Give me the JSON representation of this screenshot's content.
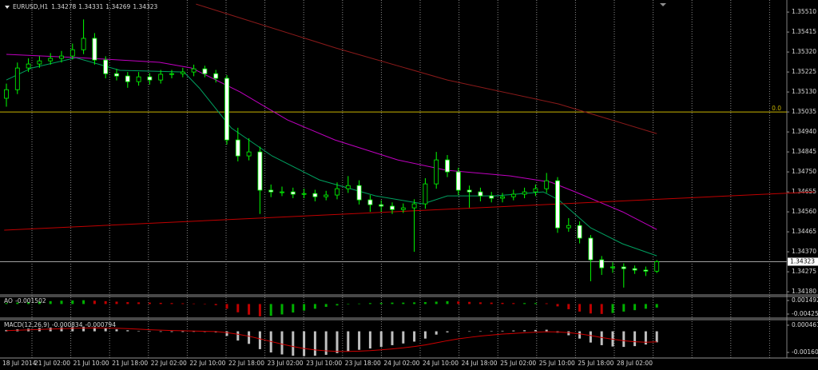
{
  "chart_data": {
    "type": "candlestick",
    "title": "EURUSD,H1",
    "up_color": "#00ff00",
    "down_color": "#ffffff",
    "open": [
      1.351,
      1.35141,
      1.35244,
      1.35263,
      1.35278,
      1.3529,
      1.35301,
      1.35331,
      1.35385,
      1.35282,
      1.35217,
      1.35206,
      1.35179,
      1.35202,
      1.35187,
      1.35214,
      1.35217,
      1.35225,
      1.3524,
      1.35217,
      1.35195,
      1.34902,
      1.34826,
      1.34845,
      1.34663,
      1.34655,
      1.34655,
      1.34644,
      1.34647,
      1.34632,
      1.3464,
      1.3467,
      1.34685,
      1.34617,
      1.34594,
      1.34587,
      1.34571,
      1.34579,
      1.34598,
      1.34693,
      1.34807,
      1.3475,
      1.34663,
      1.34655,
      1.34636,
      1.34625,
      1.34632,
      1.34644,
      1.34655,
      1.3467,
      1.34708,
      1.34484,
      1.34495,
      1.34435,
      1.34332,
      1.34294,
      1.34298,
      1.3429,
      1.34283,
      1.34278
    ],
    "high": [
      1.3517,
      1.3527,
      1.3529,
      1.353,
      1.35315,
      1.35325,
      1.3536,
      1.35475,
      1.3541,
      1.353,
      1.3524,
      1.35225,
      1.35225,
      1.3522,
      1.35235,
      1.35235,
      1.35245,
      1.3526,
      1.35255,
      1.35235,
      1.3521,
      1.3496,
      1.3491,
      1.3487,
      1.3469,
      1.3468,
      1.34675,
      1.3467,
      1.34665,
      1.3466,
      1.347,
      1.3473,
      1.3471,
      1.3464,
      1.34615,
      1.34605,
      1.346,
      1.3462,
      1.3472,
      1.34845,
      1.3483,
      1.3477,
      1.34685,
      1.34675,
      1.34655,
      1.3465,
      1.34665,
      1.34675,
      1.3469,
      1.34745,
      1.34725,
      1.3453,
      1.34515,
      1.3445,
      1.3435,
      1.3432,
      1.34315,
      1.34305,
      1.343,
      1.34331
    ],
    "low": [
      1.3506,
      1.3512,
      1.35225,
      1.35245,
      1.3526,
      1.3527,
      1.35285,
      1.3531,
      1.3526,
      1.35195,
      1.35185,
      1.3515,
      1.3516,
      1.35165,
      1.3517,
      1.35195,
      1.352,
      1.35205,
      1.352,
      1.35175,
      1.3488,
      1.348,
      1.34805,
      1.3455,
      1.3463,
      1.34635,
      1.34625,
      1.34625,
      1.3461,
      1.34615,
      1.3462,
      1.3465,
      1.34595,
      1.3456,
      1.3456,
      1.3455,
      1.34555,
      1.3437,
      1.34575,
      1.3467,
      1.34725,
      1.3464,
      1.3458,
      1.3461,
      1.34605,
      1.34605,
      1.34615,
      1.34625,
      1.34635,
      1.3465,
      1.3446,
      1.34465,
      1.3441,
      1.3423,
      1.3426,
      1.3427,
      1.342,
      1.34265,
      1.34255,
      1.34269
    ],
    "close": [
      1.35141,
      1.35244,
      1.35263,
      1.35278,
      1.3529,
      1.35301,
      1.35331,
      1.35385,
      1.35282,
      1.35217,
      1.35206,
      1.35179,
      1.35202,
      1.35187,
      1.35214,
      1.35217,
      1.35225,
      1.3524,
      1.35217,
      1.35195,
      1.34902,
      1.34826,
      1.34845,
      1.34663,
      1.34655,
      1.34655,
      1.34644,
      1.34647,
      1.34632,
      1.3464,
      1.3467,
      1.34685,
      1.34617,
      1.34594,
      1.34587,
      1.34571,
      1.34579,
      1.34598,
      1.34693,
      1.34807,
      1.3475,
      1.34663,
      1.34655,
      1.34636,
      1.34625,
      1.34632,
      1.34644,
      1.34655,
      1.3467,
      1.34708,
      1.34484,
      1.34495,
      1.34435,
      1.34332,
      1.34294,
      1.34298,
      1.3429,
      1.34283,
      1.34278,
      1.34323
    ],
    "categories": [
      "18 Jul 2014",
      "21 Jul 02:00",
      "21 Jul 10:00",
      "21 Jul 18:00",
      "22 Jul 02:00",
      "22 Jul 10:00",
      "22 Jul 18:00",
      "23 Jul 02:00",
      "23 Jul 10:00",
      "23 Jul 18:00",
      "24 Jul 02:00",
      "24 Jul 10:00",
      "24 Jul 18:00",
      "25 Jul 02:00",
      "25 Jul 10:00",
      "25 Jul 18:00",
      "28 Jul 02:00"
    ],
    "ylim": [
      1.34169,
      1.35556
    ],
    "yticks": [
      {
        "value": 1.3551,
        "label": "1.35510"
      },
      1.35415,
      {
        "value": 1.3532,
        "label": "1.35320"
      },
      1.35225,
      {
        "value": 1.3513,
        "label": "1.35130"
      },
      1.35035,
      {
        "value": 1.3494,
        "label": "1.34940"
      },
      1.34845,
      {
        "value": 1.3475,
        "label": "1.34750"
      },
      1.34655,
      {
        "value": 1.3456,
        "label": "1.34560"
      },
      1.34465,
      {
        "value": 1.3437,
        "label": "1.34370"
      },
      1.34275,
      {
        "value": 1.3418,
        "label": "1.34180"
      }
    ],
    "grid": true,
    "overlays": [
      {
        "color": "#00a060",
        "x": [
          0,
          2.3,
          6.3,
          10.3,
          16.1,
          17.5,
          20.4,
          24.1,
          28.4,
          33.5,
          37.8,
          40,
          44.3,
          48.7,
          50.1,
          53,
          55.9,
          59
        ],
        "values": [
          1.35187,
          1.35244,
          1.35293,
          1.35233,
          1.35225,
          1.35149,
          1.34959,
          1.34826,
          1.34712,
          1.34636,
          1.34598,
          1.34636,
          1.34636,
          1.34655,
          1.34617,
          1.34484,
          1.34408,
          1.34351
        ]
      },
      {
        "color": "#c000c0",
        "x": [
          0,
          6.7,
          13.9,
          16.8,
          21.2,
          25.5,
          29.8,
          35.5,
          39.9,
          45.7,
          49.4,
          51.6,
          55.9,
          59
        ],
        "values": [
          1.35309,
          1.35293,
          1.35271,
          1.35244,
          1.3513,
          1.34997,
          1.34902,
          1.34807,
          1.34758,
          1.34731,
          1.34701,
          1.34655,
          1.3456,
          1.34476
        ]
      },
      {
        "color": "#8b1a1a",
        "x": [
          17.2,
          29.9,
          40,
          50.1,
          59
        ],
        "values": [
          1.35548,
          1.35339,
          1.35187,
          1.35073,
          1.34932
        ]
      },
      {
        "color": "#c00000",
        "x": [
          -0.2,
          73.3
        ],
        "values": [
          1.34473,
          1.34655
        ]
      }
    ],
    "levels": [
      {
        "value": 1.35035,
        "label": "0.0",
        "color": "#c8b400"
      }
    ],
    "subcharts": [
      {
        "type": "ao",
        "title": "AO",
        "up_color": "#00b000",
        "down_color": "#c00000",
        "values": [
          0.0004,
          0.0006,
          0.0008,
          0.001,
          0.0012,
          0.0014,
          0.0015,
          0.0016,
          0.0014,
          0.0012,
          0.001,
          0.0008,
          0.0007,
          0.0006,
          0.0005,
          0.0004,
          0.0003,
          0.0002,
          0,
          -0.0005,
          -0.002,
          -0.0035,
          -0.0045,
          -0.0052,
          -0.005,
          -0.0044,
          -0.0036,
          -0.0028,
          -0.002,
          -0.0012,
          -0.0006,
          -0.0002,
          0.0002,
          0.0004,
          0.0005,
          0.0006,
          0.0006,
          0.0007,
          0.0008,
          0.001,
          0.0012,
          0.0011,
          0.0009,
          0.0007,
          0.0006,
          0.0005,
          0.0004,
          0.0004,
          0.0004,
          0.0003,
          -0.001,
          -0.0022,
          -0.0032,
          -0.004,
          -0.0042,
          -0.0038,
          -0.0032,
          -0.0026,
          -0.002,
          -0.001502
        ],
        "ylim": [
          -0.00594,
          0.00285
        ],
        "yticks": [
          0.001492,
          -0.00425
        ]
      },
      {
        "type": "macd",
        "title": "MACD(12,26,9)",
        "color": "#c0c0c0",
        "values": [
          0.0001,
          0.00015,
          0.0002,
          0.00025,
          0.00028,
          0.0003,
          0.00032,
          0.00035,
          0.0003,
          0.00022,
          0.00015,
          8e-05,
          2e-05,
          -2e-05,
          -4e-05,
          -5e-05,
          -5e-05,
          -4e-05,
          -5e-05,
          -8e-05,
          -0.00035,
          -0.0007,
          -0.00095,
          -0.00135,
          -0.0016,
          -0.00175,
          -0.00185,
          -0.00188,
          -0.00185,
          -0.00178,
          -0.00165,
          -0.0015,
          -0.0014,
          -0.0013,
          -0.00118,
          -0.00105,
          -0.00092,
          -0.00078,
          -0.00055,
          -0.00025,
          -8e-05,
          -2e-05,
          0,
          2e-05,
          3e-05,
          4e-05,
          6e-05,
          8e-05,
          0.0001,
          0.00012,
          -0.0001,
          -0.0003,
          -0.00055,
          -0.00085,
          -0.00105,
          -0.00115,
          -0.00118,
          -0.00112,
          -0.001,
          -0.000834
        ],
        "signal": {
          "color": "#d00000",
          "values": [
            5e-05,
            8e-05,
            0.00011,
            0.00014,
            0.00017,
            0.0002,
            0.00022,
            0.00025,
            0.00026,
            0.00025,
            0.00023,
            0.0002,
            0.00016,
            0.00012,
            9e-05,
            6e-05,
            4e-05,
            2e-05,
            0,
            -2e-05,
            -0.0001,
            -0.00022,
            -0.00037,
            -0.00057,
            -0.00077,
            -0.00097,
            -0.00115,
            -0.0013,
            -0.00141,
            -0.00148,
            -0.00152,
            -0.00152,
            -0.0015,
            -0.00146,
            -0.0014,
            -0.00133,
            -0.00125,
            -0.00115,
            -0.00103,
            -0.00087,
            -0.00071,
            -0.00057,
            -0.00046,
            -0.00036,
            -0.00028,
            -0.00021,
            -0.00016,
            -0.00011,
            -7e-05,
            -3e-05,
            -5e-05,
            -0.0001,
            -0.00019,
            -0.00032,
            -0.00047,
            -0.0006,
            -0.00071,
            -0.00079,
            -0.00083,
            -0.000794
          ]
        },
        "ylim": [
          -0.00196,
          0.00076
        ],
        "yticks": [
          {
            "value": 0.000461,
            "label": "0.000461"
          },
          {
            "value": -0.0016,
            "label": "-0.001600"
          }
        ]
      }
    ]
  }
}
